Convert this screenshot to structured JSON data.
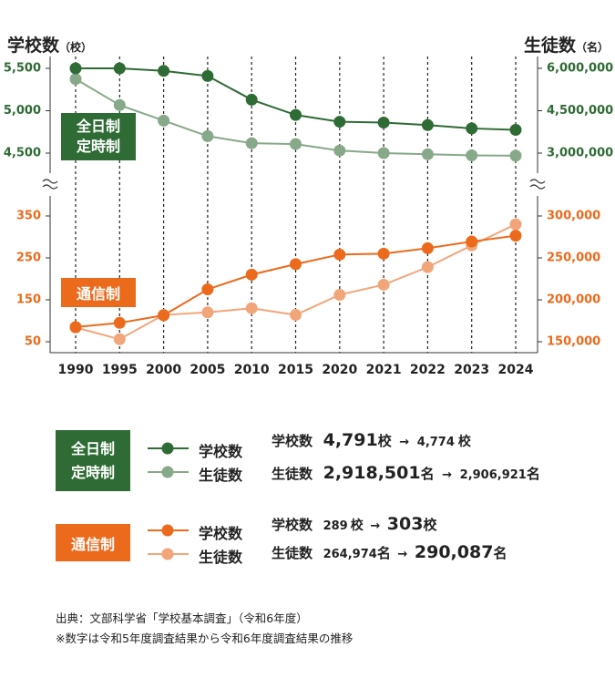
{
  "colors": {
    "dark_green": "#2f6b35",
    "light_green": "#87a889",
    "dark_orange": "#ec6a1c",
    "light_orange": "#f3a57a",
    "green_text": "#2f6b35",
    "orange_text": "#ec6a1c"
  },
  "axis_titles": {
    "left": "学校数",
    "left_unit": "（校）",
    "right": "生徒数",
    "right_unit": "（名）"
  },
  "badges": {
    "fulltime_line1": "全日制",
    "fulltime_line2": "定時制",
    "correspondence": "通信制"
  },
  "legend": {
    "schools": "学校数",
    "students": "生徒数"
  },
  "stats": {
    "fulltime_schools_label": "学校数",
    "fulltime_schools_from": "4,791",
    "fulltime_schools_from_unit": "校",
    "fulltime_schools_to": "4,774",
    "fulltime_schools_to_unit": "校",
    "fulltime_students_label": "生徒数",
    "fulltime_students_from": "2,918,501",
    "fulltime_students_from_unit": "名",
    "fulltime_students_to": "2,906,921",
    "fulltime_students_to_unit": "名",
    "corr_schools_label": "学校数",
    "corr_schools_from": "289",
    "corr_schools_from_unit": "校",
    "corr_schools_to": "303",
    "corr_schools_to_unit": "校",
    "corr_students_label": "生徒数",
    "corr_students_from": "264,974",
    "corr_students_from_unit": "名",
    "corr_students_to": "290,087",
    "corr_students_to_unit": "名",
    "arrow": "→"
  },
  "notes": {
    "source": "出典：文部科学省「学校基本調査」（令和6年度）",
    "remark": "※数字は令和5年度調査結果から令和6年度調査結果の推移"
  },
  "chart_data": {
    "type": "line",
    "x": [
      "1990",
      "1995",
      "2000",
      "2005",
      "2010",
      "2015",
      "2020",
      "2021",
      "2022",
      "2023",
      "2024"
    ],
    "upper_panel": {
      "left_ticks": [
        "5,500",
        "5,000",
        "4,500"
      ],
      "left_tick_values": [
        5500,
        5000,
        4500
      ],
      "right_ticks": [
        "6,000,000",
        "4,500,000",
        "3,000,000"
      ],
      "right_tick_values": [
        6000000,
        4500000,
        3000000
      ],
      "series": [
        {
          "name": "学校数",
          "group": "全日制・定時制",
          "axis": "left",
          "values": [
            5500,
            5500,
            5470,
            5410,
            5130,
            4950,
            4870,
            4860,
            4830,
            4791,
            4774
          ]
        },
        {
          "name": "生徒数",
          "group": "全日制・定時制",
          "axis": "right",
          "values": [
            5620000,
            4700000,
            4150000,
            3600000,
            3350000,
            3320000,
            3090000,
            3000000,
            2960000,
            2918501,
            2906921
          ]
        }
      ]
    },
    "lower_panel": {
      "left_ticks": [
        "350",
        "250",
        "150",
        "50"
      ],
      "left_tick_values": [
        350,
        250,
        150,
        50
      ],
      "right_ticks": [
        "300,000",
        "250,000",
        "200,000",
        "150,000"
      ],
      "right_tick_values": [
        300000,
        250000,
        200000,
        150000
      ],
      "series": [
        {
          "name": "学校数",
          "group": "通信制",
          "axis": "left",
          "values": [
            85,
            95,
            113,
            175,
            210,
            235,
            258,
            260,
            273,
            289,
            303
          ]
        },
        {
          "name": "生徒数",
          "group": "通信制",
          "axis": "right",
          "values": [
            167000,
            153000,
            182000,
            185000,
            190000,
            182000,
            206000,
            218000,
            239000,
            264974,
            290087
          ]
        }
      ]
    },
    "grid": "vertical dashed"
  }
}
